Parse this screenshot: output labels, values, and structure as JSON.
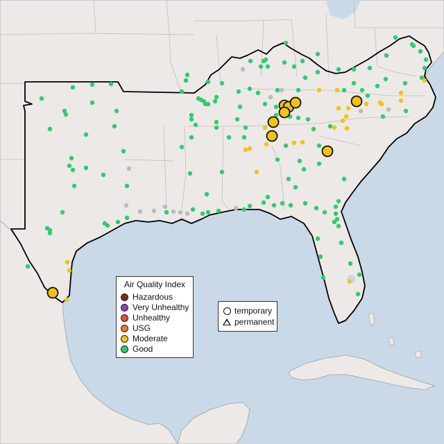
{
  "map": {
    "colors": {
      "water": "#c9d9e7",
      "land": "#ece9e6",
      "border": "#b9b6b3",
      "region_outline": "#000000"
    },
    "categories": {
      "good": "#2ecc71",
      "moderate": "#f1c40f",
      "usg": "#e67e22",
      "unhealthy": "#e74c3c",
      "very_unhealthy": "#8e44ad",
      "hazardous": "#7b2c1f",
      "no_data": "#b8bcc0"
    }
  },
  "legend": {
    "title": "Air Quality Index",
    "items": [
      {
        "label": "Hazardous",
        "color": "#7b2c1f"
      },
      {
        "label": "Very Unhealthy",
        "color": "#8e44ad"
      },
      {
        "label": "Unhealthy",
        "color": "#e74c3c"
      },
      {
        "label": "USG",
        "color": "#e67e22"
      },
      {
        "label": "Moderate",
        "color": "#f1c40f"
      },
      {
        "label": "Good",
        "color": "#2ecc71"
      }
    ]
  },
  "monitor_types": {
    "temporary": "temporary",
    "permanent": "permanent"
  }
}
